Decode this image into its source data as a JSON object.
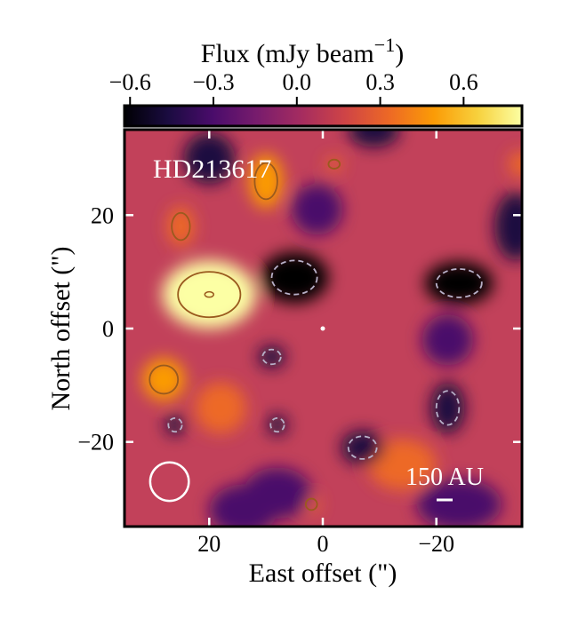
{
  "chart_data": {
    "type": "heatmap",
    "object_label": "HD213617",
    "xlabel": "East offset (\")",
    "ylabel": "North offset (\")",
    "xlim": [
      35,
      -35
    ],
    "ylim": [
      -35,
      35
    ],
    "xticks": [
      {
        "v": 20,
        "label": "20"
      },
      {
        "v": 0,
        "label": "0"
      },
      {
        "v": -20,
        "label": "−20"
      }
    ],
    "yticks": [
      {
        "v": 20,
        "label": "20"
      },
      {
        "v": 0,
        "label": "0"
      },
      {
        "v": -20,
        "label": "−20"
      }
    ],
    "colorbar": {
      "label": "Flux (mJy beam",
      "label_sup": "−1",
      "label_close": ")",
      "range": [
        -0.62,
        0.81
      ],
      "ticks": [
        {
          "v": -0.6,
          "label": "−0.6"
        },
        {
          "v": -0.3,
          "label": "−0.3"
        },
        {
          "v": 0.0,
          "label": "0.0"
        },
        {
          "v": 0.3,
          "label": "0.3"
        },
        {
          "v": 0.6,
          "label": "0.6"
        }
      ],
      "colormap": [
        "#000004",
        "#1b0c41",
        "#4a0c6b",
        "#781c6d",
        "#a52c60",
        "#cf4446",
        "#ed6925",
        "#fb9b06",
        "#f7d13d",
        "#fcffa4"
      ]
    },
    "scale_bar": {
      "label": "150 AU"
    },
    "beam": {
      "x": 27,
      "y": -27,
      "r": 3.4
    },
    "sources": [
      {
        "x": 20,
        "y": 6,
        "rx": 5.5,
        "ry": 4,
        "flux": 0.8,
        "contour": true
      },
      {
        "x": 28,
        "y": -9,
        "rx": 2.5,
        "ry": 2.5,
        "flux": 0.5,
        "contour": true
      },
      {
        "x": 10,
        "y": 26,
        "rx": 2,
        "ry": 3.2,
        "flux": 0.5,
        "contour": true
      },
      {
        "x": 25,
        "y": 18,
        "rx": 1.6,
        "ry": 2.4,
        "flux": 0.4,
        "contour": true
      },
      {
        "x": -2,
        "y": 29,
        "rx": 1,
        "ry": 0.8,
        "flux": 0.3,
        "contour": true
      },
      {
        "x": 2,
        "y": -31,
        "rx": 1,
        "ry": 1,
        "flux": 0.3,
        "contour": true
      },
      {
        "x": -35,
        "y": 29,
        "rx": 1.5,
        "ry": 1.5,
        "flux": 0.3,
        "contour": false
      },
      {
        "x": 18,
        "y": -14,
        "rx": 3,
        "ry": 3,
        "flux": 0.3,
        "contour": false
      },
      {
        "x": -14,
        "y": -24,
        "rx": 4,
        "ry": 3,
        "flux": 0.3,
        "contour": false
      },
      {
        "x": 5,
        "y": 9,
        "rx": 4,
        "ry": 3,
        "flux": -0.62,
        "contour": true
      },
      {
        "x": -24,
        "y": 8,
        "rx": 4,
        "ry": 2.5,
        "flux": -0.6,
        "contour": true
      },
      {
        "x": -22,
        "y": -14,
        "rx": 2,
        "ry": 3,
        "flux": -0.5,
        "contour": true
      },
      {
        "x": -7,
        "y": -21,
        "rx": 2.5,
        "ry": 2,
        "flux": -0.5,
        "contour": true
      },
      {
        "x": 9,
        "y": -5,
        "rx": 1.6,
        "ry": 1.3,
        "flux": -0.4,
        "contour": true
      },
      {
        "x": 26,
        "y": -17,
        "rx": 1.2,
        "ry": 1.2,
        "flux": -0.4,
        "contour": true
      },
      {
        "x": 8,
        "y": -17,
        "rx": 1.2,
        "ry": 1.2,
        "flux": -0.4,
        "contour": true
      },
      {
        "x": 20,
        "y": 30,
        "rx": 3,
        "ry": 3,
        "flux": -0.4,
        "contour": false
      },
      {
        "x": 1,
        "y": 21,
        "rx": 3,
        "ry": 3,
        "flux": -0.35,
        "contour": false
      },
      {
        "x": -34,
        "y": 18,
        "rx": 2.5,
        "ry": 4,
        "flux": -0.4,
        "contour": false
      },
      {
        "x": -24,
        "y": -31,
        "rx": 5,
        "ry": 3,
        "flux": -0.35,
        "contour": false
      },
      {
        "x": 8,
        "y": -29,
        "rx": 4,
        "ry": 3,
        "flux": -0.35,
        "contour": false
      },
      {
        "x": -22,
        "y": -2,
        "rx": 3,
        "ry": 3,
        "flux": -0.3,
        "contour": false
      },
      {
        "x": 14,
        "y": -32,
        "rx": 4,
        "ry": 3,
        "flux": -0.3,
        "contour": false
      },
      {
        "x": -9,
        "y": 35,
        "rx": 3,
        "ry": 2,
        "flux": -0.45,
        "contour": false
      }
    ]
  }
}
